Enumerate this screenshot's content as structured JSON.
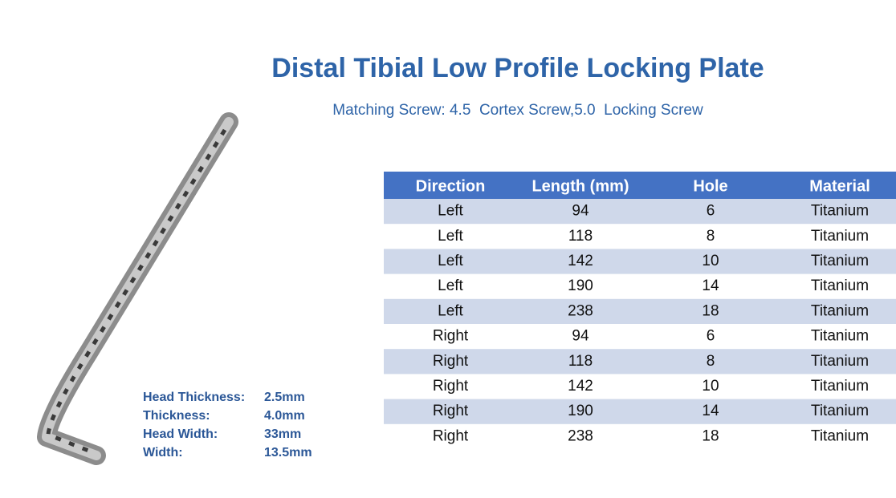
{
  "header": {
    "title": "Distal Tibial Low Profile Locking Plate",
    "subtitle": "Matching Screw: 4.5  Cortex Screw,5.0  Locking Screw"
  },
  "specs": [
    [
      "Head Thickness:",
      "2.5mm"
    ],
    [
      "Thickness:",
      "4.0mm"
    ],
    [
      "Head Width:",
      "33mm"
    ],
    [
      "Width:",
      "13.5mm"
    ]
  ],
  "table": {
    "columns": [
      "Direction",
      "Length (mm)",
      "Hole",
      "Material"
    ],
    "rows": [
      [
        "Left",
        94,
        6,
        "Titanium"
      ],
      [
        "Left",
        118,
        8,
        "Titanium"
      ],
      [
        "Left",
        142,
        10,
        "Titanium"
      ],
      [
        "Left",
        190,
        14,
        "Titanium"
      ],
      [
        "Left",
        238,
        18,
        "Titanium"
      ],
      [
        "Right",
        94,
        6,
        "Titanium"
      ],
      [
        "Right",
        118,
        8,
        "Titanium"
      ],
      [
        "Right",
        142,
        10,
        "Titanium"
      ],
      [
        "Right",
        190,
        14,
        "Titanium"
      ],
      [
        "Right",
        238,
        18,
        "Titanium"
      ]
    ]
  }
}
